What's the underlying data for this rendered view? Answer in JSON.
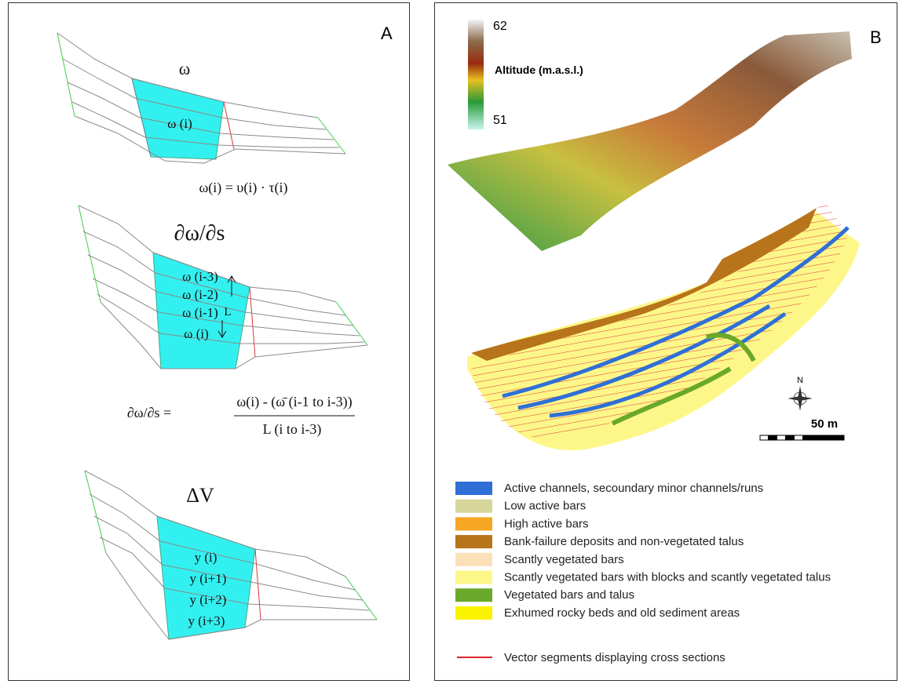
{
  "panel_a": {
    "label": "A",
    "omega": {
      "title": "ω",
      "section": "ω (i)",
      "formula": "ω(i) = υ(i) · τ(i)"
    },
    "gradient": {
      "title": "∂ω/∂s",
      "sections": [
        "ω (i-3)",
        "ω (i-2)",
        "ω (i-1)",
        "ω (i)"
      ],
      "length": "L",
      "formula_left": "∂ω/∂s =",
      "numerator": "ω(i) - (ω̄ (i-1 to i-3))",
      "denominator": "L (i to i-3)"
    },
    "volume": {
      "title": "ΔV",
      "sections": [
        "y (i)",
        "y (i+1)",
        "y (i+2)",
        "y (i+3)"
      ]
    }
  },
  "panel_b": {
    "label": "B",
    "colorbar": {
      "max": "62",
      "title": "Altitude (m.a.s.l.)",
      "min": "51"
    },
    "north": "N",
    "scale": "50 m",
    "legend": [
      {
        "label": "Active channels, secoundary minor channels/runs",
        "color": "#2f6fd6"
      },
      {
        "label": "Low active bars",
        "color": "#d6d69a"
      },
      {
        "label": "High active bars",
        "color": "#f5a623"
      },
      {
        "label": "Bank-failure deposits and non-vegetated talus",
        "color": "#b8741a"
      },
      {
        "label": "Scantly vegetated bars",
        "color": "#fbe0b8"
      },
      {
        "label": "Scantly vegetated bars with blocks and scantly vegetated talus",
        "color": "#fdf78a"
      },
      {
        "label": "Vegetated bars and talus",
        "color": "#6aa82a"
      },
      {
        "label": "Exhumed rocky beds and old sediment areas",
        "color": "#fbf200"
      }
    ],
    "line_legend": {
      "label": "Vector segments displaying cross sections",
      "color": "#e0252b"
    }
  }
}
